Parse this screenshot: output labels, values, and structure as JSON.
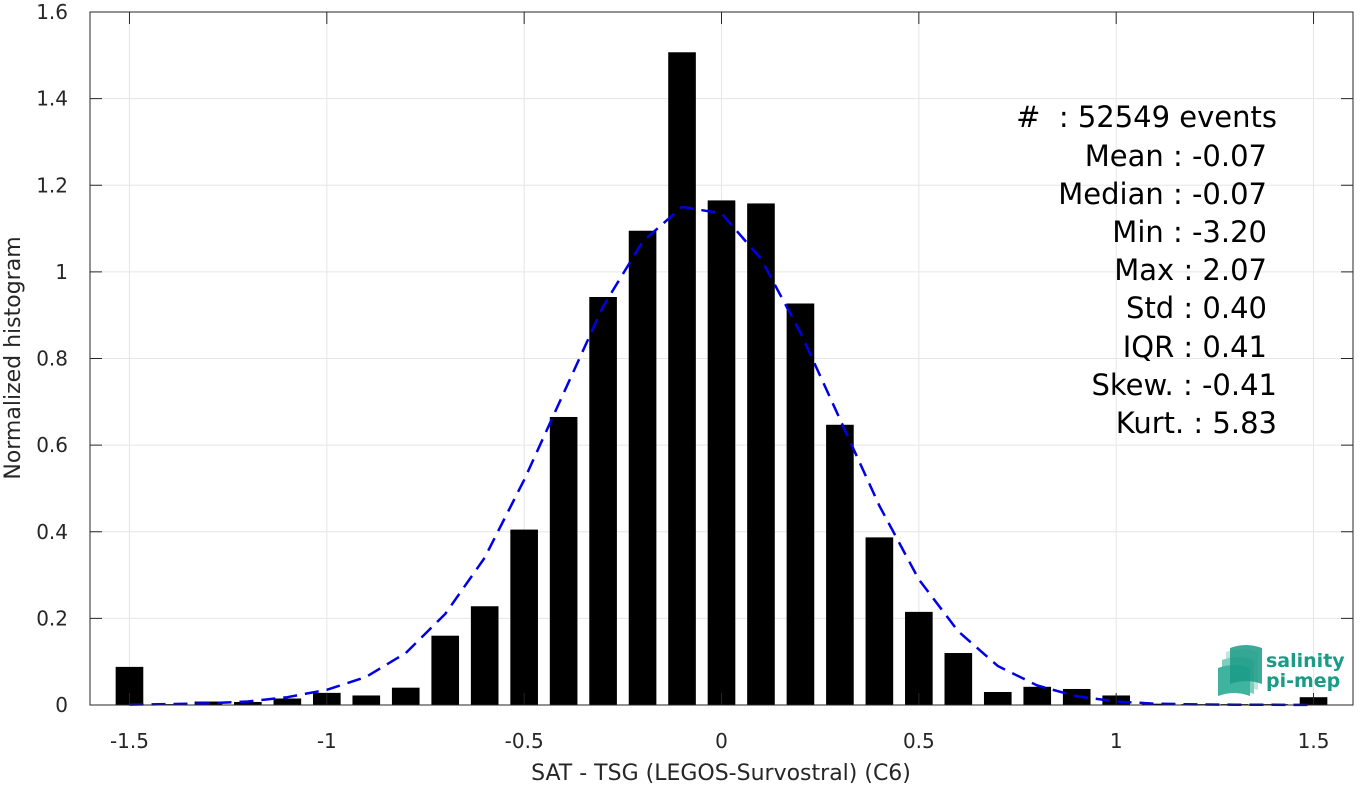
{
  "chart_data": {
    "type": "bar",
    "xlabel": "SAT - TSG (LEGOS-Survostral) (C6)",
    "ylabel": "Normalized histogram",
    "xlim": [
      -1.6,
      1.6
    ],
    "ylim": [
      0,
      1.6
    ],
    "xticks": [
      -1.5,
      -1,
      -0.5,
      0,
      0.5,
      1,
      1.5
    ],
    "xtick_labels": [
      "-1.5",
      "-1",
      "-0.5",
      "0",
      "0.5",
      "1",
      "1.5"
    ],
    "yticks": [
      0,
      0.2,
      0.4,
      0.6,
      0.8,
      1,
      1.2,
      1.4,
      1.6
    ],
    "ytick_labels": [
      "0",
      "0.2",
      "0.4",
      "0.6",
      "0.8",
      "1",
      "1.2",
      "1.4",
      "1.6"
    ],
    "grid": true,
    "bar_width": 0.07,
    "bars": {
      "x": [
        -1.5,
        -1.4,
        -1.3,
        -1.2,
        -1.1,
        -1.0,
        -0.9,
        -0.8,
        -0.7,
        -0.6,
        -0.5,
        -0.4,
        -0.3,
        -0.2,
        -0.1,
        0.0,
        0.1,
        0.2,
        0.3,
        0.4,
        0.5,
        0.6,
        0.7,
        0.8,
        0.9,
        1.0,
        1.1,
        1.2,
        1.3,
        1.4,
        1.5
      ],
      "values": [
        0.088,
        0.002,
        0.008,
        0.007,
        0.015,
        0.028,
        0.022,
        0.04,
        0.16,
        0.228,
        0.405,
        0.665,
        0.942,
        1.095,
        1.507,
        1.165,
        1.158,
        0.927,
        0.647,
        0.387,
        0.215,
        0.12,
        0.03,
        0.042,
        0.037,
        0.022,
        0.003,
        0.002,
        0.002,
        0.002,
        0.018
      ],
      "color": "#000000"
    },
    "fit_curve": {
      "style": "dashed",
      "color": "#0000e6",
      "x": [
        -1.5,
        -1.4,
        -1.3,
        -1.2,
        -1.1,
        -1.0,
        -0.9,
        -0.8,
        -0.7,
        -0.6,
        -0.5,
        -0.4,
        -0.3,
        -0.2,
        -0.1,
        0.0,
        0.1,
        0.2,
        0.3,
        0.4,
        0.5,
        0.6,
        0.7,
        0.8,
        0.9,
        1.0,
        1.1,
        1.2,
        1.3,
        1.4,
        1.5
      ],
      "y": [
        0.001,
        0.002,
        0.004,
        0.008,
        0.018,
        0.035,
        0.065,
        0.12,
        0.21,
        0.34,
        0.52,
        0.72,
        0.92,
        1.07,
        1.15,
        1.135,
        1.03,
        0.86,
        0.66,
        0.46,
        0.29,
        0.17,
        0.09,
        0.045,
        0.02,
        0.008,
        0.003,
        0.0015,
        0.0008,
        0.0004,
        0.0002
      ]
    },
    "stats": {
      "events": "#  : 52549 events",
      "mean": "Mean : -0.07",
      "median": "Median : -0.07",
      "min": "Min : -3.20",
      "max": "Max : 2.07",
      "std": "Std : 0.40",
      "iqr": "IQR : 0.41",
      "skew": "Skew. : -0.41",
      "kurt": "Kurt. : 5.83"
    }
  },
  "logo": {
    "line1": "salinity",
    "line2": "pi-mep",
    "color": "#1a9b86"
  }
}
